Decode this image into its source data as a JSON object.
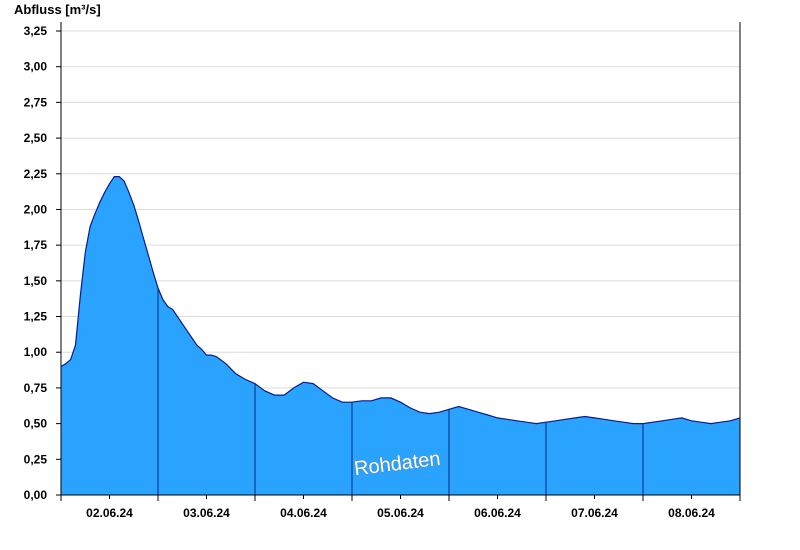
{
  "chart_data": {
    "type": "area",
    "ylabel": "Abfluss [m³/s]",
    "ylim": [
      0,
      3.25
    ],
    "yticks": [
      "0,00",
      "0,25",
      "0,50",
      "0,75",
      "1,00",
      "1,25",
      "1,50",
      "1,75",
      "2,00",
      "2,25",
      "2,50",
      "2,75",
      "3,00",
      "3,25"
    ],
    "xlim_days": [
      1.5,
      8.5
    ],
    "categories": [
      "02.06.24",
      "03.06.24",
      "04.06.24",
      "05.06.24",
      "06.06.24",
      "07.06.24",
      "08.06.24"
    ],
    "grid": true,
    "watermark": "Rohdaten",
    "series": [
      {
        "color": "#29a3fe",
        "line_color": "#0a1a8c",
        "x": [
          1.5,
          1.55,
          1.6,
          1.65,
          1.7,
          1.75,
          1.8,
          1.85,
          1.9,
          1.95,
          2.0,
          2.05,
          2.1,
          2.15,
          2.2,
          2.25,
          2.3,
          2.35,
          2.4,
          2.45,
          2.5,
          2.55,
          2.6,
          2.65,
          2.7,
          2.75,
          2.8,
          2.85,
          2.9,
          2.95,
          3.0,
          3.05,
          3.1,
          3.2,
          3.3,
          3.4,
          3.5,
          3.6,
          3.7,
          3.8,
          3.9,
          4.0,
          4.1,
          4.2,
          4.3,
          4.4,
          4.5,
          4.6,
          4.7,
          4.8,
          4.9,
          5.0,
          5.1,
          5.2,
          5.3,
          5.4,
          5.5,
          5.6,
          5.7,
          5.8,
          5.9,
          6.0,
          6.1,
          6.2,
          6.3,
          6.4,
          6.5,
          6.6,
          6.7,
          6.8,
          6.9,
          7.0,
          7.1,
          7.2,
          7.3,
          7.4,
          7.5,
          7.6,
          7.7,
          7.8,
          7.9,
          8.0,
          8.1,
          8.2,
          8.3,
          8.4,
          8.5
        ],
        "values": [
          0.9,
          0.92,
          0.95,
          1.05,
          1.4,
          1.7,
          1.88,
          1.97,
          2.05,
          2.12,
          2.18,
          2.23,
          2.23,
          2.2,
          2.12,
          2.03,
          1.92,
          1.8,
          1.68,
          1.56,
          1.45,
          1.37,
          1.32,
          1.3,
          1.25,
          1.2,
          1.15,
          1.1,
          1.05,
          1.02,
          0.98,
          0.98,
          0.97,
          0.92,
          0.85,
          0.81,
          0.78,
          0.73,
          0.7,
          0.7,
          0.75,
          0.79,
          0.78,
          0.73,
          0.68,
          0.65,
          0.65,
          0.66,
          0.66,
          0.68,
          0.68,
          0.65,
          0.61,
          0.58,
          0.57,
          0.58,
          0.6,
          0.62,
          0.6,
          0.58,
          0.56,
          0.54,
          0.53,
          0.52,
          0.51,
          0.5,
          0.51,
          0.52,
          0.53,
          0.54,
          0.55,
          0.54,
          0.53,
          0.52,
          0.51,
          0.5,
          0.5,
          0.51,
          0.52,
          0.53,
          0.54,
          0.52,
          0.51,
          0.5,
          0.51,
          0.52,
          0.54
        ]
      }
    ]
  }
}
